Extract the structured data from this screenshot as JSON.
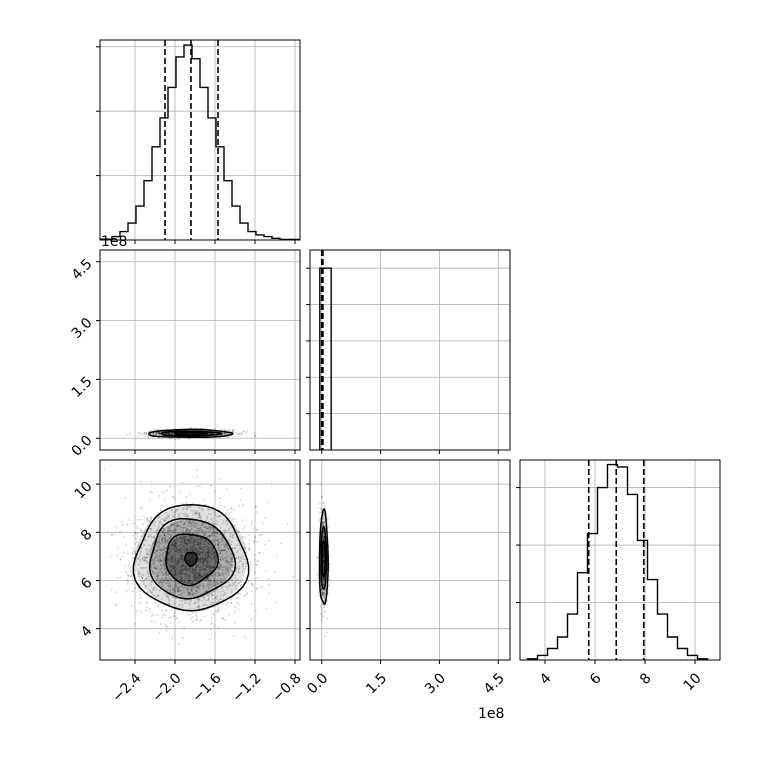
{
  "chart_data": {
    "type": "corner",
    "offset_text": "1e8",
    "grid": true,
    "panels": [
      {
        "id": "hist-p1",
        "type": "histogram",
        "xlim": [
          -2.75,
          -0.75
        ],
        "x_ticks": [
          -2.4,
          -2.0,
          -1.6,
          -1.2,
          -0.8
        ],
        "quantiles": [
          -2.1,
          -1.84,
          -1.57
        ],
        "bins": [
          [
            -2.75,
            -2.63,
            0.5
          ],
          [
            -2.63,
            -2.55,
            2
          ],
          [
            -2.55,
            -2.47,
            5
          ],
          [
            -2.47,
            -2.39,
            10
          ],
          [
            -2.39,
            -2.31,
            20
          ],
          [
            -2.31,
            -2.23,
            35
          ],
          [
            -2.23,
            -2.15,
            55
          ],
          [
            -2.15,
            -2.07,
            72
          ],
          [
            -2.07,
            -1.99,
            90
          ],
          [
            -1.99,
            -1.91,
            108
          ],
          [
            -1.91,
            -1.83,
            115
          ],
          [
            -1.83,
            -1.75,
            107
          ],
          [
            -1.75,
            -1.67,
            90
          ],
          [
            -1.67,
            -1.59,
            72
          ],
          [
            -1.59,
            -1.51,
            55
          ],
          [
            -1.51,
            -1.43,
            35
          ],
          [
            -1.43,
            -1.35,
            20
          ],
          [
            -1.35,
            -1.27,
            10
          ],
          [
            -1.27,
            -1.19,
            5
          ],
          [
            -1.19,
            -1.11,
            3
          ],
          [
            -1.11,
            -1.03,
            2
          ],
          [
            -1.03,
            -0.95,
            1
          ],
          [
            -0.95,
            -0.75,
            0.3
          ]
        ],
        "y_ticks": [
          38,
          76,
          114
        ],
        "ylim": [
          0,
          118
        ]
      },
      {
        "id": "scatter-p1-p2",
        "type": "scatter-contour",
        "xlim": [
          -2.75,
          -0.75
        ],
        "ylim": [
          -0.3,
          4.8
        ],
        "x_ticks": [
          -2.4,
          -2.0,
          -1.6,
          -1.2,
          -0.8
        ],
        "y_ticks": [
          0.0,
          1.5,
          3.0,
          4.5
        ],
        "y_tick_labels": [
          "0.0",
          "1.5",
          "3.0",
          "4.5"
        ],
        "y_offset": "1e8",
        "center": [
          -1.85,
          0.12
        ],
        "contours": [
          [
            0.42,
            0.1
          ],
          [
            0.3,
            0.06
          ],
          [
            0.16,
            0.03
          ]
        ]
      },
      {
        "id": "hist-p2",
        "type": "histogram",
        "xlim": [
          -0.3,
          4.8
        ],
        "x_ticks": [
          0.0,
          1.5,
          3.0,
          4.5
        ],
        "quantiles": [
          0.0,
          0.0,
          0.03
        ],
        "bins": [
          [
            -0.05,
            0.24,
            1
          ]
        ],
        "ylim": [
          0,
          1.1
        ],
        "y_ticks": [
          0.2,
          0.4,
          0.6,
          0.8,
          1.0
        ]
      },
      {
        "id": "scatter-p1-p3",
        "type": "scatter-contour",
        "xlim": [
          -2.75,
          -0.75
        ],
        "ylim": [
          2.7,
          11.0
        ],
        "x_ticks": [
          -2.4,
          -2.0,
          -1.6,
          -1.2,
          -0.8
        ],
        "x_tick_labels": [
          "−2.4",
          "−2.0",
          "−1.6",
          "−1.2",
          "−0.8"
        ],
        "y_ticks": [
          4,
          6,
          8,
          10
        ],
        "y_tick_labels": [
          "4",
          "6",
          "8",
          "10"
        ],
        "center": [
          -1.84,
          6.9
        ],
        "contours": [
          [
            0.56,
            2.2
          ],
          [
            0.42,
            1.65
          ],
          [
            0.26,
            1.05
          ],
          [
            0.06,
            0.28
          ]
        ]
      },
      {
        "id": "scatter-p2-p3",
        "type": "scatter-contour",
        "xlim": [
          -0.3,
          4.8
        ],
        "ylim": [
          2.7,
          11.0
        ],
        "x_ticks": [
          0.0,
          1.5,
          3.0,
          4.5
        ],
        "x_tick_labels": [
          "0.0",
          "1.5",
          "3.0",
          "4.5"
        ],
        "x_offset": "1e8",
        "y_ticks": [
          4,
          6,
          8,
          10
        ],
        "center": [
          0.05,
          6.9
        ],
        "contours": [
          [
            0.11,
            1.95
          ],
          [
            0.07,
            1.3
          ],
          [
            0.04,
            0.75
          ]
        ]
      },
      {
        "id": "hist-p3",
        "type": "histogram",
        "xlim": [
          3.0,
          11.0
        ],
        "x_ticks": [
          4,
          6,
          8,
          10
        ],
        "x_tick_labels": [
          "4",
          "6",
          "8",
          "10"
        ],
        "quantiles": [
          5.75,
          6.85,
          7.95
        ],
        "bins": [
          [
            3.3,
            3.7,
            0.5
          ],
          [
            3.7,
            4.1,
            2
          ],
          [
            4.1,
            4.5,
            5
          ],
          [
            4.5,
            4.9,
            10
          ],
          [
            4.9,
            5.3,
            20
          ],
          [
            5.3,
            5.7,
            38
          ],
          [
            5.7,
            6.1,
            55
          ],
          [
            6.1,
            6.5,
            75
          ],
          [
            6.5,
            6.9,
            85
          ],
          [
            6.9,
            7.3,
            84
          ],
          [
            7.3,
            7.7,
            72
          ],
          [
            7.7,
            8.1,
            52
          ],
          [
            8.1,
            8.5,
            35
          ],
          [
            8.5,
            8.9,
            20
          ],
          [
            8.9,
            9.3,
            10
          ],
          [
            9.3,
            9.7,
            5
          ],
          [
            9.7,
            10.1,
            2
          ],
          [
            10.1,
            10.5,
            0.5
          ]
        ],
        "y_ticks": [
          25,
          50,
          75
        ],
        "ylim": [
          0,
          87
        ]
      }
    ]
  }
}
